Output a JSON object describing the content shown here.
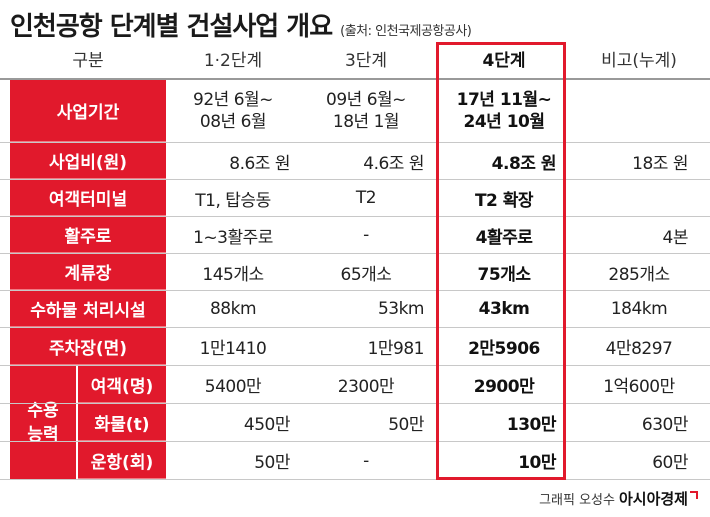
{
  "title": "인천공항 단계별 건설사업 개요",
  "source": "(출처: 인천국제공항공사)",
  "columns": [
    "구분",
    "1·2단계",
    "3단계",
    "4단계",
    "비고(누계)"
  ],
  "rows": [
    {
      "label": "사업기간",
      "c1": [
        "92년 6월~",
        "08년 6월"
      ],
      "c2": [
        "09년 6월~",
        "18년 1월"
      ],
      "c3": [
        "17년 11월~",
        "24년 10월"
      ],
      "c4": ""
    },
    {
      "label": "사업비(원)",
      "c1": "8.6조 원",
      "c2": "4.6조 원",
      "c3": "4.8조 원",
      "c4": "18조 원"
    },
    {
      "label": "여객터미널",
      "c1": "T1, 탑승동",
      "c2": "T2",
      "c3": "T2 확장",
      "c4": ""
    },
    {
      "label": "활주로",
      "c1": "1~3활주로",
      "c2": "-",
      "c3": "4활주로",
      "c4": "4본"
    },
    {
      "label": "계류장",
      "c1": "145개소",
      "c2": "65개소",
      "c3": "75개소",
      "c4": "285개소"
    },
    {
      "label": "수하물 처리시설",
      "c1": "88km",
      "c2": "53km",
      "c3": "43km",
      "c4": "184km"
    },
    {
      "label": "주차장(면)",
      "c1": "1만1410",
      "c2": "1만981",
      "c3": "2만5906",
      "c4": "4만8297"
    }
  ],
  "capacity": {
    "group_label_1": "수용",
    "group_label_2": "능력",
    "rows": [
      {
        "label": "여객(명)",
        "c1": "5400만",
        "c2": "2300만",
        "c3": "2900만",
        "c4": "1억600만"
      },
      {
        "label": "화물(t)",
        "c1": "450만",
        "c2": "50만",
        "c3": "130만",
        "c4": "630만"
      },
      {
        "label": "운항(회)",
        "c1": "50만",
        "c2": "-",
        "c3": "10만",
        "c4": "60만"
      }
    ]
  },
  "credit": {
    "graphic": "그래픽 오성수",
    "brand": "아시아경제"
  },
  "colors": {
    "accent": "#e1192c"
  }
}
